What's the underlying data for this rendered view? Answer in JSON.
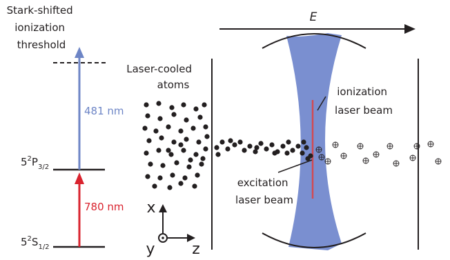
{
  "threshold_label": [
    "Stark-shifted",
    "ionization",
    "threshold"
  ],
  "transitions": {
    "blue": {
      "label": "481 nm",
      "color": "#6d85c6"
    },
    "red": {
      "label": "780 nm",
      "color": "#d9232e"
    }
  },
  "levels": {
    "p32": {
      "main": "5",
      "sup": "2",
      "term": "P",
      "sub": "3/2"
    },
    "s12": {
      "main": "5",
      "sup": "2",
      "term": "S",
      "sub": "1/2"
    }
  },
  "field": {
    "label": "E"
  },
  "atoms_label": [
    "Laser-cooled",
    "atoms"
  ],
  "ionization_beam_label": [
    "ionization",
    "laser beam"
  ],
  "excitation_beam_label": [
    "excitation",
    "laser beam"
  ],
  "axes": {
    "x": "x",
    "y": "y",
    "z": "z"
  },
  "colors": {
    "ion_beam": "#7a8fd0",
    "excitation_beam": "#d24a52",
    "ink": "#231f20"
  },
  "ion_symbol": "⊕"
}
